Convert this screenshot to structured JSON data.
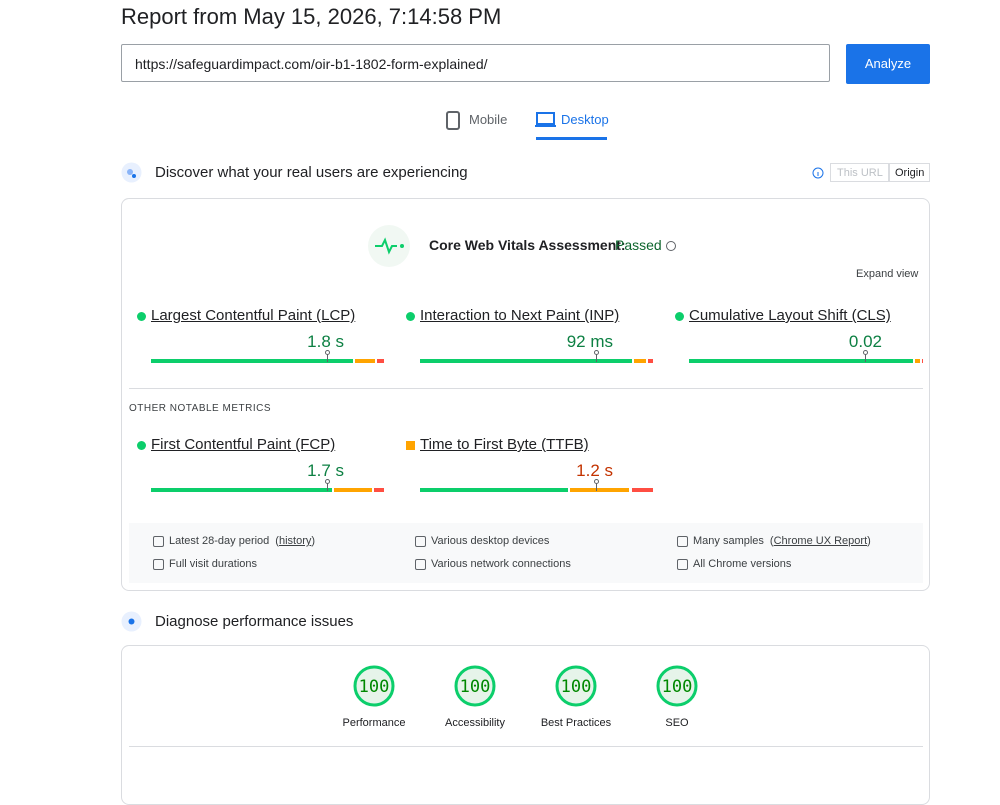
{
  "header": {
    "title": "Report from May 15, 2026, 7:14:58 PM",
    "url": "https://safeguardimpact.com/oir-b1-1802-form-explained/",
    "analyze": "Analyze"
  },
  "tabs": [
    "Mobile",
    "Desktop"
  ],
  "field": {
    "heading": "Discover what your real users are experiencing",
    "toggle": [
      "This URL",
      "Origin"
    ],
    "assessment_label": "Core Web Vitals Assessment:",
    "assessment_result": "Passed",
    "expand": "Expand view",
    "core_metrics": [
      {
        "name": "Largest Contentful Paint (LCP)",
        "value": "1.8 s",
        "color": "#0cce6b",
        "distribution": [
          87,
          9,
          4
        ]
      },
      {
        "name": "Interaction to Next Paint (INP)",
        "value": "92 ms",
        "color": "#0cce6b",
        "distribution": [
          91,
          6,
          3
        ]
      },
      {
        "name": "Cumulative Layout Shift (CLS)",
        "value": "0.02",
        "color": "#0cce6b",
        "distribution": [
          96,
          3,
          1
        ]
      }
    ],
    "other_heading": "OTHER NOTABLE METRICS",
    "other_metrics": [
      {
        "name": "First Contentful Paint (FCP)",
        "value": "1.7 s",
        "color": "#0cce6b",
        "distribution": [
          78,
          17,
          5
        ]
      },
      {
        "name": "Time to First Byte (TTFB)",
        "value": "1.2 s",
        "color": "#ffa400",
        "distribution": [
          64,
          26,
          10
        ]
      }
    ],
    "footer": [
      {
        "text": "Latest 28-day period",
        "link": "history"
      },
      {
        "text": "Various desktop devices"
      },
      {
        "text": "Many samples",
        "link": "Chrome UX Report"
      },
      {
        "text": "Full visit durations"
      },
      {
        "text": "Various network connections"
      },
      {
        "text": "All Chrome versions"
      }
    ]
  },
  "diagnose": {
    "heading": "Diagnose performance issues",
    "scores": [
      {
        "value": 100,
        "label": "Performance"
      },
      {
        "value": 100,
        "label": "Accessibility"
      },
      {
        "value": 100,
        "label": "Best Practices"
      },
      {
        "value": 100,
        "label": "SEO"
      }
    ]
  }
}
